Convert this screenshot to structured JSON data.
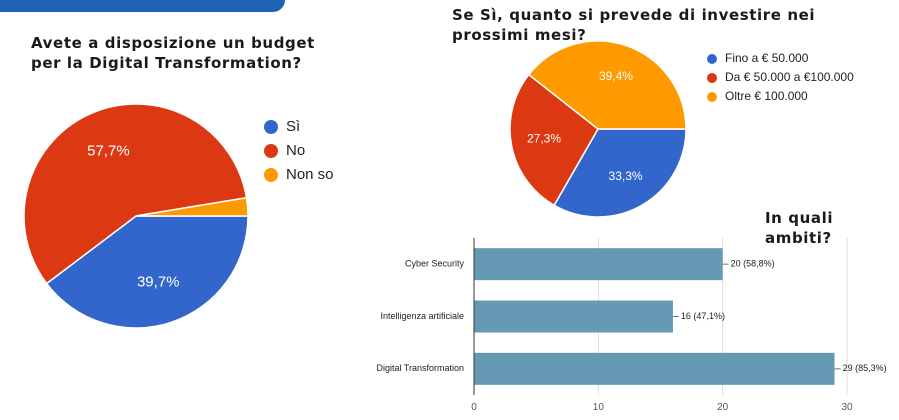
{
  "titles": {
    "left": "Avete a disposizione un budget per la Digital Transformation?",
    "right": "Se Sì, quanto si prevede di investire nei prossimi mesi?",
    "bar": "In quali ambiti?"
  },
  "chart_data": [
    {
      "type": "pie",
      "title": "Avete a disposizione un budget per la Digital Transformation?",
      "labels": [
        "Sì",
        "No",
        "Non so"
      ],
      "values": [
        39.7,
        57.7,
        2.6
      ],
      "value_labels": [
        "39,7%",
        "57,7%",
        ""
      ],
      "colors": [
        "#3366cc",
        "#dc3912",
        "#ff9900"
      ],
      "legend_position": "right"
    },
    {
      "type": "pie",
      "title": "Se Sì, quanto si prevede di investire nei prossimi mesi?",
      "labels": [
        "Fino a € 50.000",
        "Da € 50.000 a €100.000",
        "Oltre € 100.000"
      ],
      "values": [
        33.3,
        27.3,
        39.4
      ],
      "value_labels": [
        "33,3%",
        "27,3%",
        "39,4%"
      ],
      "colors": [
        "#3366cc",
        "#dc3912",
        "#ff9900"
      ],
      "legend_position": "right"
    },
    {
      "type": "bar",
      "orientation": "horizontal",
      "title": "In quali ambiti?",
      "categories": [
        "Cyber Security",
        "Intelligenza artificiale",
        "Digital Transformation"
      ],
      "values": [
        20,
        16,
        29
      ],
      "value_labels": [
        "20 (58,8%)",
        "16 (47,1%)",
        "29 (85,3%)"
      ],
      "xlim": [
        0,
        30
      ],
      "xticks": [
        "0",
        "10",
        "20",
        "30"
      ],
      "color": "#6699b4",
      "grid": true
    }
  ]
}
